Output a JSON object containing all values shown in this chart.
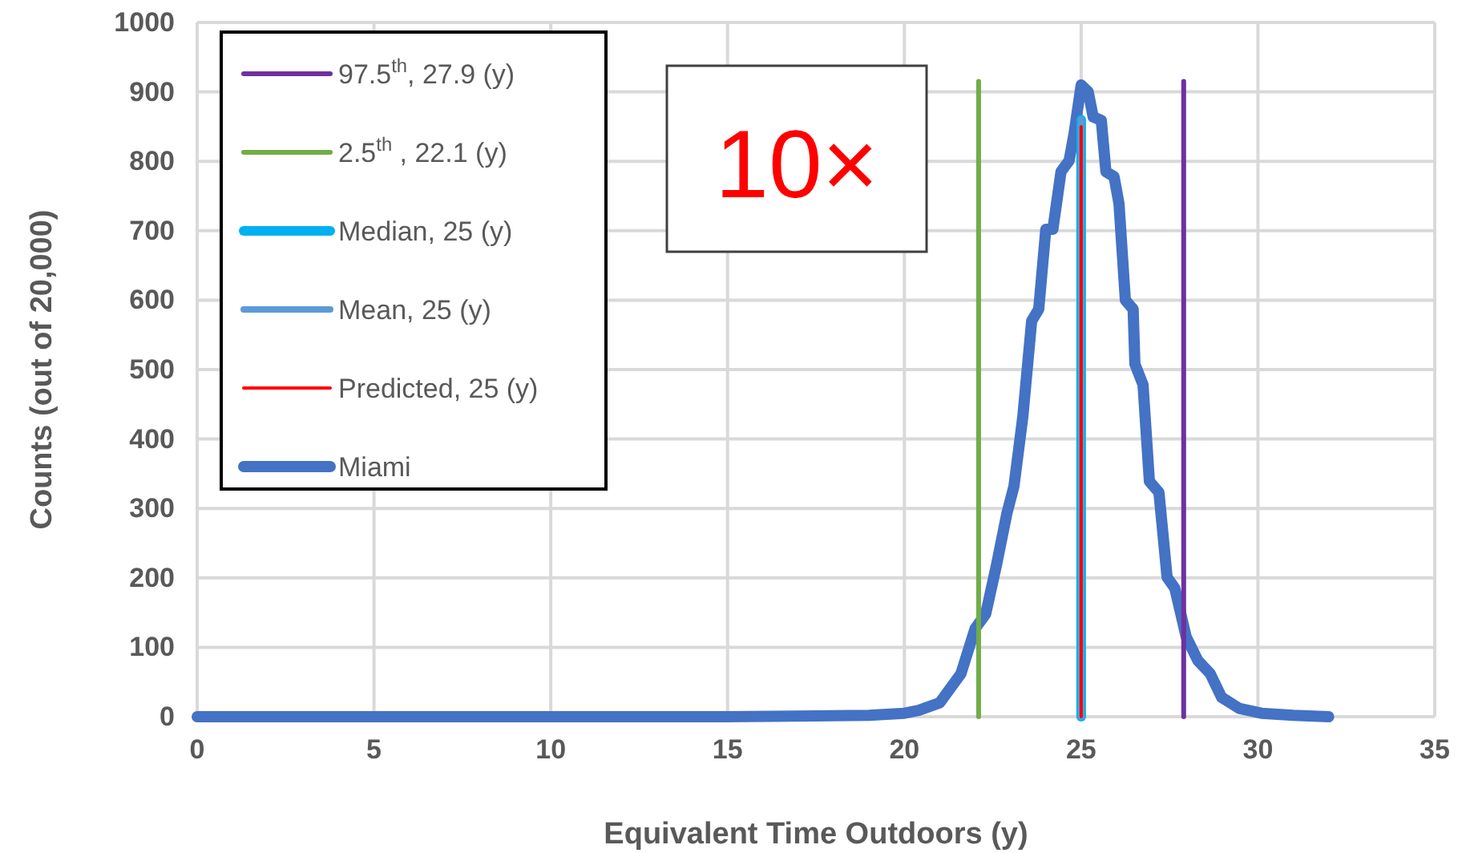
{
  "chart_data": {
    "type": "line",
    "xlabel": "Equivalent Time Outdoors (y)",
    "ylabel": "Counts (out of 20,000)",
    "xlim": [
      0,
      35
    ],
    "ylim": [
      0,
      1000
    ],
    "xticks": [
      0,
      5,
      10,
      15,
      20,
      25,
      30,
      35
    ],
    "yticks": [
      0,
      100,
      200,
      300,
      400,
      500,
      600,
      700,
      800,
      900,
      1000
    ],
    "grid": true,
    "legend": "top left",
    "annotations": [
      "10×"
    ],
    "series": [
      {
        "name": "97.5$^{th}$, 27.9 (y)",
        "color": "#7030a0",
        "x": [
          27.9,
          27.9
        ],
        "values": [
          0,
          915
        ]
      },
      {
        "name": "2.5$^{th}$ , 22.1 (y)",
        "color": "#70ad47",
        "x": [
          22.1,
          22.1
        ],
        "values": [
          0,
          915
        ]
      },
      {
        "name": "Median, 25 (y)",
        "color": "#00b0f0",
        "x": [
          25,
          25
        ],
        "values": [
          0,
          860
        ]
      },
      {
        "name": "Mean, 25 (y)",
        "color": "#5b9bd5",
        "x": [
          25,
          25
        ],
        "values": [
          0,
          860
        ]
      },
      {
        "name": "Predicted, 25 (y)",
        "color": "#ff0000",
        "x": [
          25,
          25
        ],
        "values": [
          0,
          850
        ]
      },
      {
        "name": "Miami",
        "color": "#4472c4",
        "x": [
          0,
          5,
          10,
          15,
          19,
          20,
          20.4,
          21,
          21.6,
          22,
          22.3,
          22.6,
          22.9,
          23.1,
          23.35,
          23.6,
          23.8,
          24,
          24.2,
          24.43,
          24.66,
          24.8,
          25,
          25.2,
          25.34,
          25.57,
          25.7,
          25.93,
          26.07,
          26.25,
          26.47,
          26.52,
          26.75,
          26.93,
          27.2,
          27.43,
          27.65,
          27.97,
          28.3,
          28.65,
          28.97,
          29.47,
          30.1,
          31,
          32
        ],
        "values": [
          0,
          0,
          0,
          0,
          2,
          5,
          9,
          20,
          62,
          127,
          148,
          217,
          293,
          332,
          432,
          570,
          587,
          702,
          702,
          785,
          801,
          840,
          910,
          900,
          864,
          859,
          785,
          778,
          739,
          600,
          587,
          508,
          478,
          339,
          323,
          201,
          185,
          115,
          81,
          62,
          28,
          12,
          5,
          2,
          0
        ]
      }
    ]
  }
}
